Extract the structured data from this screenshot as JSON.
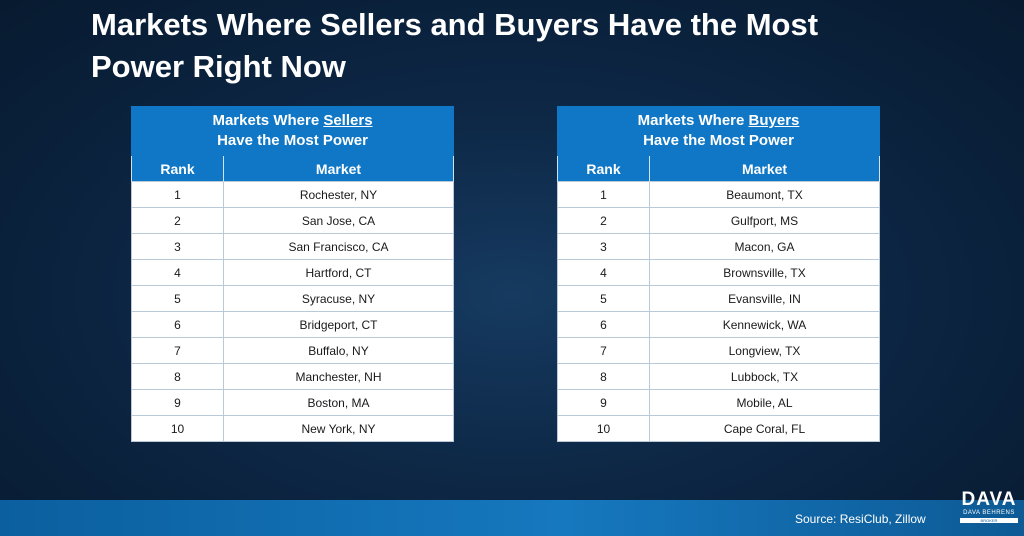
{
  "title": {
    "line1": "Markets Where Sellers and Buyers Have the Most",
    "line2": "Power Right Now"
  },
  "sellers_table": {
    "caption": {
      "line1_prefix": "Markets Where ",
      "line1_emphasis": "Sellers",
      "line2": "Have the Most Power"
    },
    "columns": {
      "rank": "Rank",
      "market": "Market"
    },
    "rows": [
      {
        "rank": "1",
        "market": "Rochester, NY"
      },
      {
        "rank": "2",
        "market": "San Jose, CA"
      },
      {
        "rank": "3",
        "market": "San Francisco, CA"
      },
      {
        "rank": "4",
        "market": "Hartford, CT"
      },
      {
        "rank": "5",
        "market": "Syracuse, NY"
      },
      {
        "rank": "6",
        "market": "Bridgeport, CT"
      },
      {
        "rank": "7",
        "market": "Buffalo, NY"
      },
      {
        "rank": "8",
        "market": "Manchester, NH"
      },
      {
        "rank": "9",
        "market": "Boston, MA"
      },
      {
        "rank": "10",
        "market": "New York, NY"
      }
    ]
  },
  "buyers_table": {
    "caption": {
      "line1_prefix": "Markets Where ",
      "line1_emphasis": "Buyers",
      "line2": "Have the Most Power"
    },
    "columns": {
      "rank": "Rank",
      "market": "Market"
    },
    "rows": [
      {
        "rank": "1",
        "market": "Beaumont, TX"
      },
      {
        "rank": "2",
        "market": "Gulfport, MS"
      },
      {
        "rank": "3",
        "market": "Macon, GA"
      },
      {
        "rank": "4",
        "market": "Brownsville, TX"
      },
      {
        "rank": "5",
        "market": "Evansville, IN"
      },
      {
        "rank": "6",
        "market": "Kennewick, WA"
      },
      {
        "rank": "7",
        "market": "Longview, TX"
      },
      {
        "rank": "8",
        "market": "Lubbock, TX"
      },
      {
        "rank": "9",
        "market": "Mobile, AL"
      },
      {
        "rank": "10",
        "market": "Cape Coral, FL"
      }
    ]
  },
  "footer": {
    "source": "Source: ResiClub, Zillow"
  },
  "logo": {
    "main": "DAVA",
    "sub": "Dava Behrens",
    "bar": "Broker"
  },
  "colors": {
    "background": "#0d2745",
    "header_blue": "#0f77c6",
    "footer_blue": "#1678bf",
    "text_white": "#ffffff"
  }
}
